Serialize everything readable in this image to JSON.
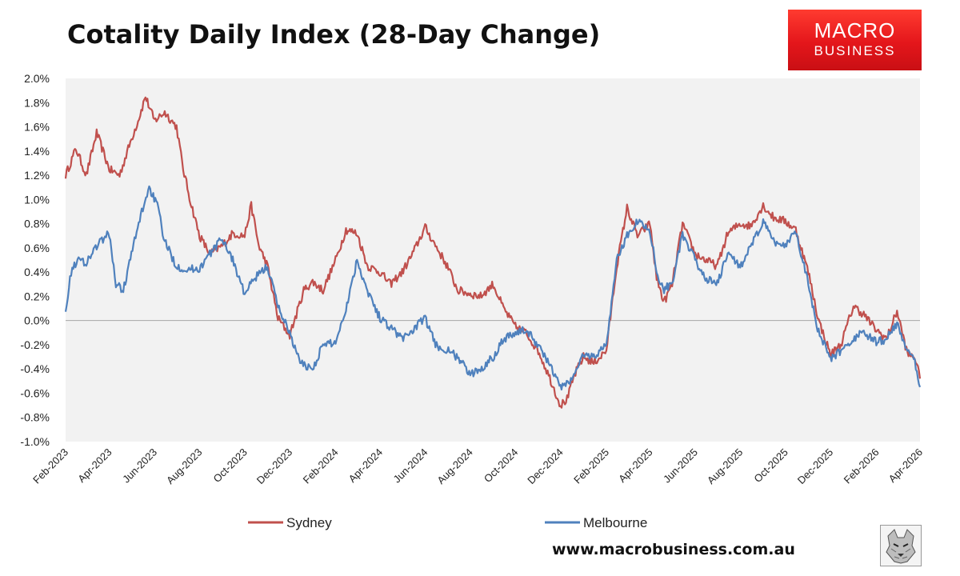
{
  "header": {
    "title": "Cotality Daily Index (28-Day Change)"
  },
  "logo": {
    "line1": "MACRO",
    "line2": "BUSINESS"
  },
  "footer": {
    "website": "www.macrobusiness.com.au"
  },
  "colors": {
    "sydney": "#c0504d",
    "melbourne": "#4f81bd",
    "plot_background": "#f2f2f2",
    "logo_red": "#e4161b"
  },
  "chart_data": {
    "type": "line",
    "title": "Cotality Daily Index (28-Day Change)",
    "xlabel": "",
    "ylabel": "",
    "ylim": [
      -1.0,
      2.0
    ],
    "y_ticks": [
      -1.0,
      -0.8,
      -0.6,
      -0.4,
      -0.2,
      0.0,
      0.2,
      0.4,
      0.6,
      0.8,
      1.0,
      1.2,
      1.4,
      1.6,
      1.8,
      2.0
    ],
    "y_tick_labels": [
      "-1.0%",
      "-0.8%",
      "-0.6%",
      "-0.4%",
      "-0.2%",
      "0.0%",
      "0.2%",
      "0.4%",
      "0.6%",
      "0.8%",
      "1.0%",
      "1.2%",
      "1.4%",
      "1.6%",
      "1.8%",
      "2.0%"
    ],
    "x_range": [
      "2023-02-01",
      "2026-04-01"
    ],
    "x_ticks": [
      "2023-02-01",
      "2023-04-01",
      "2023-06-01",
      "2023-08-01",
      "2023-10-01",
      "2023-12-01",
      "2024-02-01",
      "2024-04-01",
      "2024-06-01",
      "2024-08-01",
      "2024-10-01",
      "2024-12-01",
      "2025-02-01",
      "2025-04-01",
      "2025-06-01",
      "2025-08-01",
      "2025-10-01",
      "2025-12-01",
      "2026-02-01",
      "2026-04-01"
    ],
    "x_tick_labels": [
      "Feb-2023",
      "Apr-2023",
      "Jun-2023",
      "Aug-2023",
      "Oct-2023",
      "Dec-2023",
      "Feb-2024",
      "Apr-2024",
      "Jun-2024",
      "Aug-2024",
      "Oct-2024",
      "Dec-2024",
      "Feb-2025",
      "Apr-2025",
      "Jun-2025",
      "Aug-2025",
      "Oct-2025",
      "Dec-2025",
      "Feb-2026",
      "Apr-2026"
    ],
    "grid": false,
    "zero_line": true,
    "legend_placement": "bottom",
    "series": [
      {
        "name": "Sydney",
        "color": "#c0504d",
        "points": [
          [
            "2023-02-01",
            1.2
          ],
          [
            "2023-02-15",
            1.42
          ],
          [
            "2023-03-01",
            1.2
          ],
          [
            "2023-03-15",
            1.55
          ],
          [
            "2023-04-01",
            1.25
          ],
          [
            "2023-04-15",
            1.2
          ],
          [
            "2023-05-01",
            1.5
          ],
          [
            "2023-05-10",
            1.65
          ],
          [
            "2023-05-20",
            1.85
          ],
          [
            "2023-06-01",
            1.65
          ],
          [
            "2023-06-15",
            1.72
          ],
          [
            "2023-07-01",
            1.6
          ],
          [
            "2023-07-10",
            1.25
          ],
          [
            "2023-07-20",
            0.98
          ],
          [
            "2023-08-01",
            0.7
          ],
          [
            "2023-08-15",
            0.55
          ],
          [
            "2023-09-01",
            0.62
          ],
          [
            "2023-09-15",
            0.72
          ],
          [
            "2023-10-01",
            0.7
          ],
          [
            "2023-10-10",
            0.95
          ],
          [
            "2023-10-20",
            0.62
          ],
          [
            "2023-11-01",
            0.45
          ],
          [
            "2023-11-15",
            0.02
          ],
          [
            "2023-12-01",
            -0.12
          ],
          [
            "2023-12-10",
            0.05
          ],
          [
            "2023-12-20",
            0.25
          ],
          [
            "2024-01-01",
            0.32
          ],
          [
            "2024-01-15",
            0.25
          ],
          [
            "2024-02-01",
            0.5
          ],
          [
            "2024-02-15",
            0.75
          ],
          [
            "2024-03-01",
            0.72
          ],
          [
            "2024-03-15",
            0.45
          ],
          [
            "2024-04-01",
            0.4
          ],
          [
            "2024-04-15",
            0.3
          ],
          [
            "2024-05-01",
            0.4
          ],
          [
            "2024-05-15",
            0.55
          ],
          [
            "2024-06-01",
            0.77
          ],
          [
            "2024-06-15",
            0.62
          ],
          [
            "2024-07-01",
            0.45
          ],
          [
            "2024-07-15",
            0.25
          ],
          [
            "2024-08-01",
            0.22
          ],
          [
            "2024-08-15",
            0.2
          ],
          [
            "2024-09-01",
            0.3
          ],
          [
            "2024-09-15",
            0.1
          ],
          [
            "2024-10-01",
            -0.05
          ],
          [
            "2024-10-15",
            -0.1
          ],
          [
            "2024-11-01",
            -0.25
          ],
          [
            "2024-11-15",
            -0.45
          ],
          [
            "2024-12-01",
            -0.7
          ],
          [
            "2024-12-10",
            -0.65
          ],
          [
            "2024-12-20",
            -0.45
          ],
          [
            "2025-01-01",
            -0.3
          ],
          [
            "2025-01-15",
            -0.35
          ],
          [
            "2025-02-01",
            -0.25
          ],
          [
            "2025-02-15",
            0.45
          ],
          [
            "2025-03-01",
            0.93
          ],
          [
            "2025-03-15",
            0.7
          ],
          [
            "2025-04-01",
            0.8
          ],
          [
            "2025-04-10",
            0.35
          ],
          [
            "2025-04-20",
            0.15
          ],
          [
            "2025-05-01",
            0.3
          ],
          [
            "2025-05-15",
            0.8
          ],
          [
            "2025-06-01",
            0.55
          ],
          [
            "2025-06-15",
            0.5
          ],
          [
            "2025-07-01",
            0.45
          ],
          [
            "2025-07-15",
            0.72
          ],
          [
            "2025-08-01",
            0.8
          ],
          [
            "2025-08-15",
            0.78
          ],
          [
            "2025-09-01",
            0.95
          ],
          [
            "2025-09-15",
            0.85
          ],
          [
            "2025-10-01",
            0.82
          ],
          [
            "2025-10-15",
            0.75
          ],
          [
            "2025-11-01",
            0.4
          ],
          [
            "2025-11-15",
            0.0
          ],
          [
            "2025-12-01",
            -0.28
          ],
          [
            "2025-12-15",
            -0.2
          ],
          [
            "2026-01-01",
            0.12
          ],
          [
            "2026-01-15",
            0.05
          ],
          [
            "2026-02-01",
            -0.08
          ],
          [
            "2026-02-15",
            -0.15
          ],
          [
            "2026-03-01",
            0.08
          ],
          [
            "2026-03-15",
            -0.28
          ],
          [
            "2026-03-25",
            -0.3
          ],
          [
            "2026-04-01",
            -0.48
          ]
        ]
      },
      {
        "name": "Melbourne",
        "color": "#4f81bd",
        "points": [
          [
            "2023-02-01",
            0.1
          ],
          [
            "2023-02-10",
            0.45
          ],
          [
            "2023-02-20",
            0.5
          ],
          [
            "2023-03-01",
            0.48
          ],
          [
            "2023-03-15",
            0.62
          ],
          [
            "2023-04-01",
            0.72
          ],
          [
            "2023-04-10",
            0.3
          ],
          [
            "2023-04-20",
            0.25
          ],
          [
            "2023-05-01",
            0.55
          ],
          [
            "2023-05-15",
            0.9
          ],
          [
            "2023-05-25",
            1.1
          ],
          [
            "2023-06-05",
            0.95
          ],
          [
            "2023-06-15",
            0.65
          ],
          [
            "2023-07-01",
            0.45
          ],
          [
            "2023-07-15",
            0.42
          ],
          [
            "2023-08-01",
            0.43
          ],
          [
            "2023-08-15",
            0.55
          ],
          [
            "2023-09-01",
            0.68
          ],
          [
            "2023-09-15",
            0.5
          ],
          [
            "2023-10-01",
            0.22
          ],
          [
            "2023-10-15",
            0.35
          ],
          [
            "2023-11-01",
            0.45
          ],
          [
            "2023-11-15",
            0.12
          ],
          [
            "2023-12-01",
            -0.1
          ],
          [
            "2023-12-15",
            -0.35
          ],
          [
            "2024-01-01",
            -0.4
          ],
          [
            "2024-01-15",
            -0.2
          ],
          [
            "2024-02-01",
            -0.18
          ],
          [
            "2024-02-15",
            0.1
          ],
          [
            "2024-03-01",
            0.5
          ],
          [
            "2024-03-15",
            0.25
          ],
          [
            "2024-04-01",
            0.02
          ],
          [
            "2024-04-15",
            -0.05
          ],
          [
            "2024-05-01",
            -0.15
          ],
          [
            "2024-05-15",
            -0.08
          ],
          [
            "2024-06-01",
            0.02
          ],
          [
            "2024-06-15",
            -0.2
          ],
          [
            "2024-07-01",
            -0.25
          ],
          [
            "2024-07-15",
            -0.3
          ],
          [
            "2024-08-01",
            -0.45
          ],
          [
            "2024-08-15",
            -0.4
          ],
          [
            "2024-09-01",
            -0.3
          ],
          [
            "2024-09-15",
            -0.15
          ],
          [
            "2024-10-01",
            -0.1
          ],
          [
            "2024-10-15",
            -0.08
          ],
          [
            "2024-11-01",
            -0.2
          ],
          [
            "2024-11-15",
            -0.35
          ],
          [
            "2024-12-01",
            -0.55
          ],
          [
            "2024-12-15",
            -0.5
          ],
          [
            "2025-01-01",
            -0.28
          ],
          [
            "2025-01-15",
            -0.3
          ],
          [
            "2025-02-01",
            -0.2
          ],
          [
            "2025-02-15",
            0.5
          ],
          [
            "2025-03-01",
            0.7
          ],
          [
            "2025-03-15",
            0.82
          ],
          [
            "2025-04-01",
            0.75
          ],
          [
            "2025-04-10",
            0.4
          ],
          [
            "2025-04-20",
            0.25
          ],
          [
            "2025-05-01",
            0.32
          ],
          [
            "2025-05-15",
            0.7
          ],
          [
            "2025-06-01",
            0.5
          ],
          [
            "2025-06-15",
            0.35
          ],
          [
            "2025-07-01",
            0.3
          ],
          [
            "2025-07-15",
            0.55
          ],
          [
            "2025-08-01",
            0.45
          ],
          [
            "2025-08-15",
            0.6
          ],
          [
            "2025-09-01",
            0.82
          ],
          [
            "2025-09-15",
            0.65
          ],
          [
            "2025-10-01",
            0.62
          ],
          [
            "2025-10-15",
            0.75
          ],
          [
            "2025-11-01",
            0.3
          ],
          [
            "2025-11-15",
            -0.1
          ],
          [
            "2025-12-01",
            -0.32
          ],
          [
            "2025-12-15",
            -0.25
          ],
          [
            "2026-01-01",
            -0.15
          ],
          [
            "2026-01-15",
            -0.1
          ],
          [
            "2026-02-01",
            -0.18
          ],
          [
            "2026-02-15",
            -0.15
          ],
          [
            "2026-03-01",
            -0.02
          ],
          [
            "2026-03-15",
            -0.25
          ],
          [
            "2026-03-25",
            -0.35
          ],
          [
            "2026-04-01",
            -0.55
          ]
        ]
      }
    ]
  }
}
